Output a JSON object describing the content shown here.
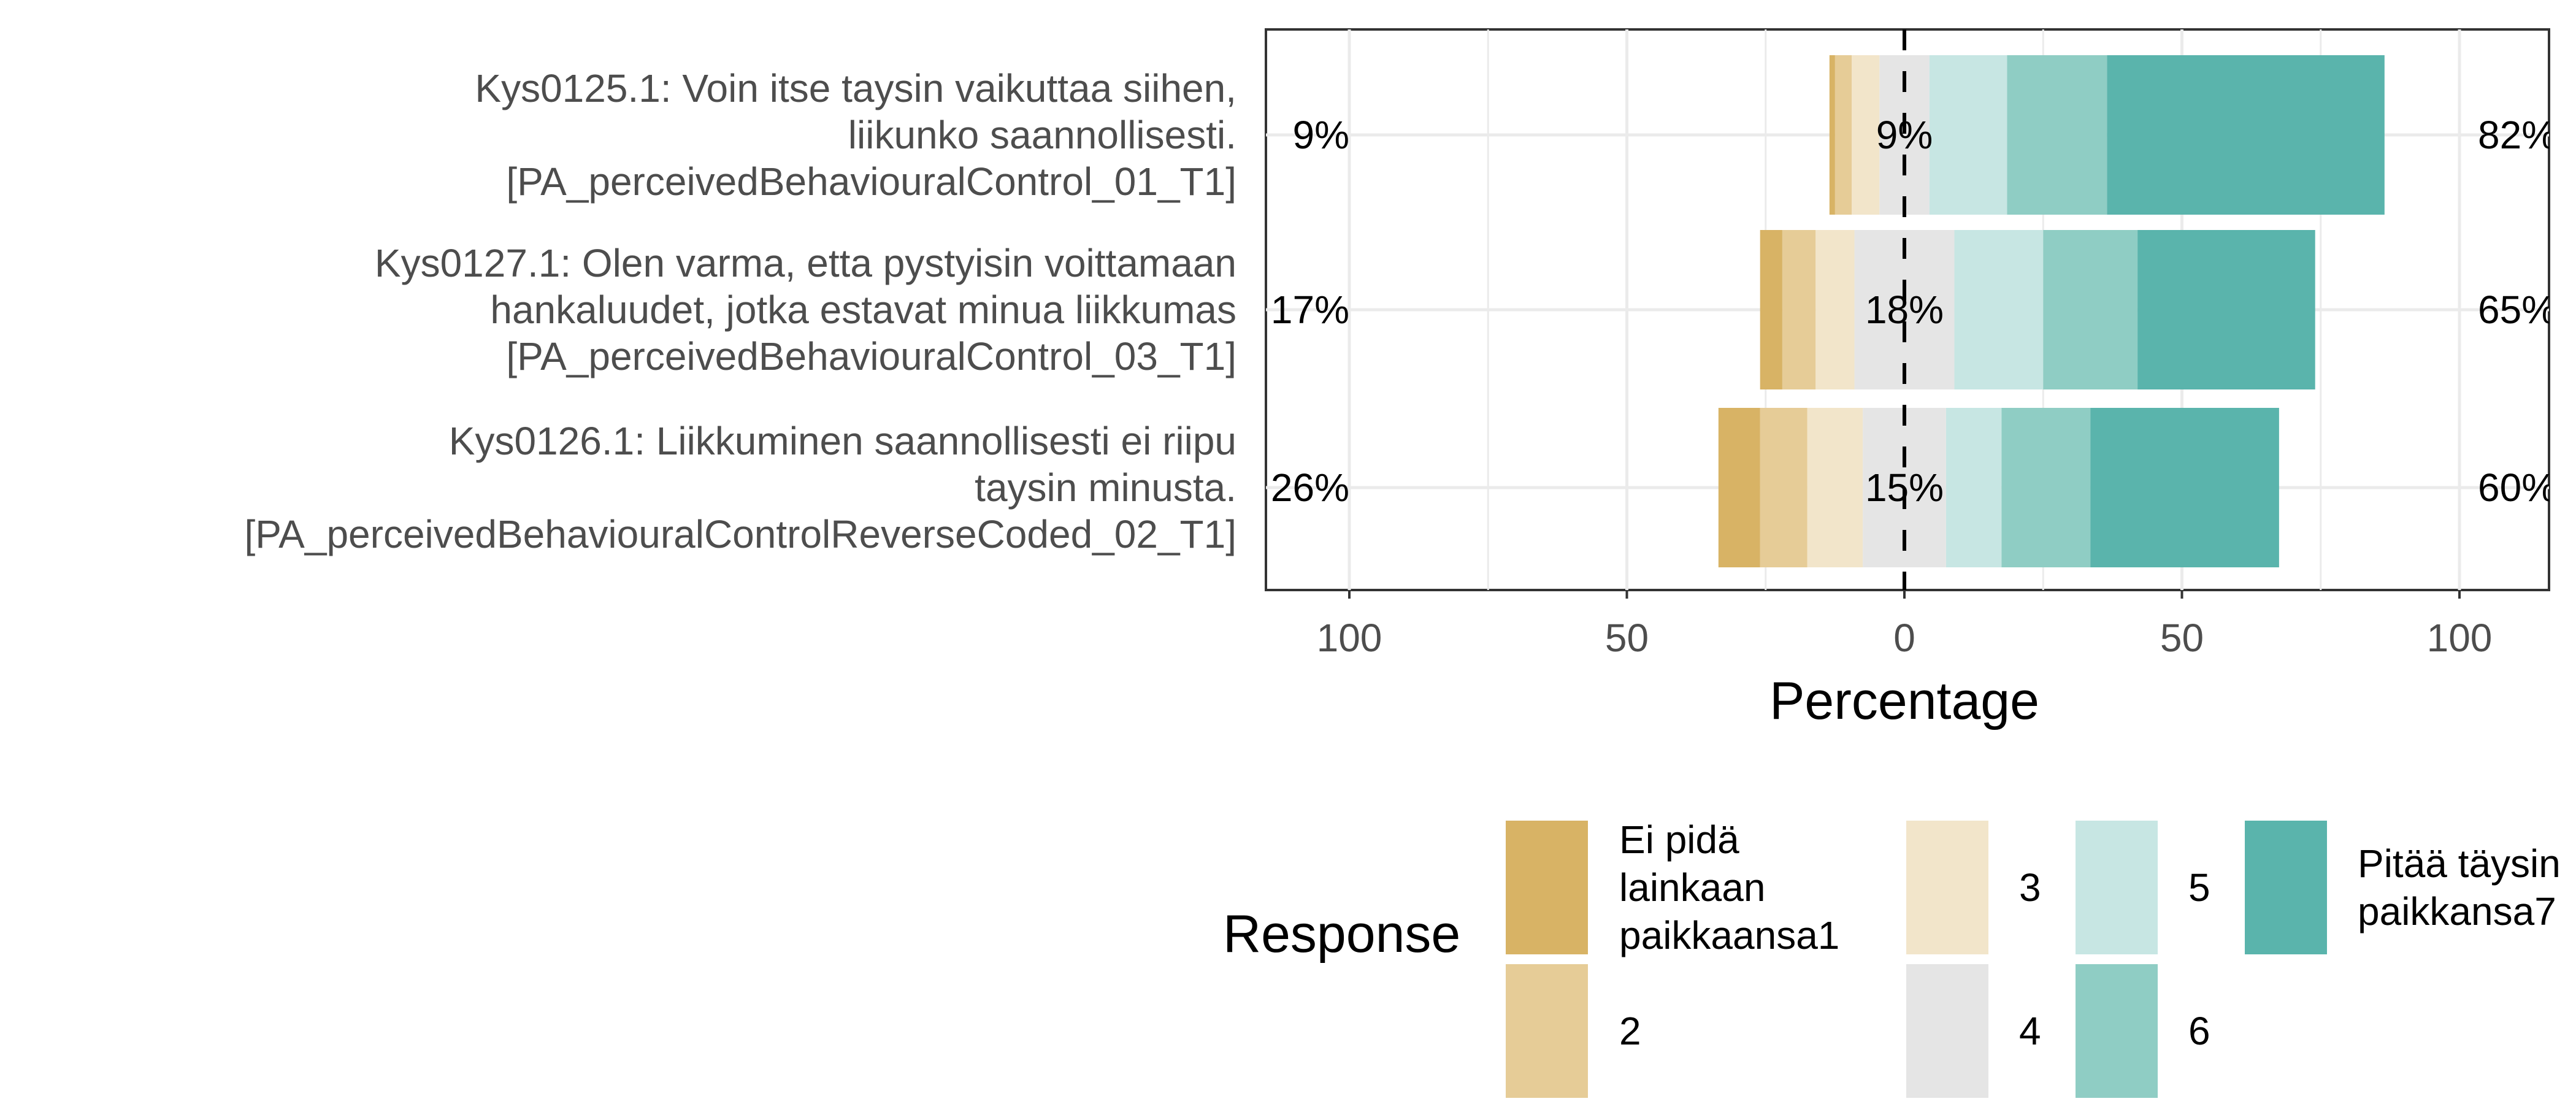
{
  "chart_data": {
    "type": "bar",
    "orientation": "horizontal",
    "stacking": "diverging",
    "xlabel": "Percentage",
    "x_ticks": [
      "100",
      "50",
      "0",
      "50",
      "100"
    ],
    "xlim": [
      -100,
      100
    ],
    "grid": true,
    "items": [
      {
        "label_lines": [
          "Kys0125.1: Voin itse taysin vaikuttaa siihen,",
          "liikunko saannollisesti.",
          "[PA_perceivedBehaviouralControl_01_T1]"
        ],
        "values": [
          1,
          3,
          5,
          9,
          14,
          18,
          50
        ],
        "low_label": "9%",
        "neutral_label": "9%",
        "high_label": "82%"
      },
      {
        "label_lines": [
          "Kys0127.1: Olen varma, etta pystyisin voittamaan",
          "hankaluudet, jotka estavat minua liikkumas",
          "[PA_perceivedBehaviouralControl_03_T1]"
        ],
        "values": [
          4,
          6,
          7,
          18,
          16,
          17,
          32
        ],
        "low_label": "17%",
        "neutral_label": "18%",
        "high_label": "65%"
      },
      {
        "label_lines": [
          "Kys0126.1: Liikkuminen saannollisesti ei riipu",
          "taysin minusta.",
          "[PA_perceivedBehaviouralControlReverseCoded_02_T1]"
        ],
        "values": [
          7.5,
          8.5,
          10,
          15,
          10,
          16,
          34
        ],
        "low_label": "26%",
        "neutral_label": "15%",
        "high_label": "60%"
      }
    ],
    "legend": {
      "title": "Response",
      "entries": [
        {
          "label_lines": [
            "Ei pidä",
            "lainkaan",
            "paikkaansa1"
          ],
          "color": "#d8b365"
        },
        {
          "label_lines": [
            "2"
          ],
          "color": "#e6cc97"
        },
        {
          "label_lines": [
            "3"
          ],
          "color": "#f2e5ca"
        },
        {
          "label_lines": [
            "4"
          ],
          "color": "#e5e5e5"
        },
        {
          "label_lines": [
            "5"
          ],
          "color": "#c7e6e3"
        },
        {
          "label_lines": [
            "6"
          ],
          "color": "#8fcdc4"
        },
        {
          "label_lines": [
            "Pitää täysin",
            "paikkansa7"
          ],
          "color": "#5ab4ac"
        }
      ]
    }
  }
}
